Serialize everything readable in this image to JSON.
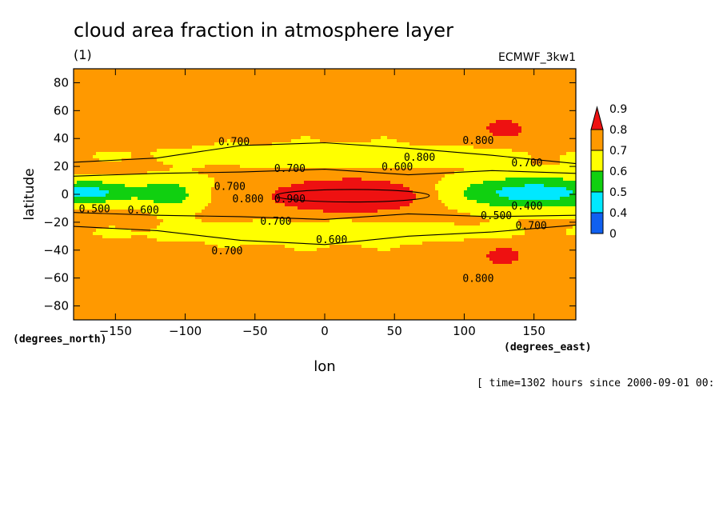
{
  "chart_data": {
    "type": "heatmap",
    "title": "cloud area fraction in atmosphere layer",
    "subtitle": "(1)",
    "dataset": "ECMWF_3kw1",
    "xlabel": "lon",
    "ylabel": "latitude",
    "x_units": "(degrees_east)",
    "y_units": "(degrees_north)",
    "xlim": [
      -180,
      180
    ],
    "ylim": [
      -90,
      90
    ],
    "x_ticks": [
      -150,
      -100,
      -50,
      0,
      50,
      100,
      150
    ],
    "y_ticks": [
      -80,
      -60,
      -40,
      -20,
      0,
      20,
      40,
      60,
      80
    ],
    "time_note": "[ time=1302 hours since 2000-09-01 00:",
    "colorbar": {
      "levels": [
        0,
        0.4,
        0.5,
        0.6,
        0.7,
        0.8,
        0.9
      ],
      "labels": [
        "0",
        "0.4",
        "0.5",
        "0.6",
        "0.7",
        "0.8",
        "0.9"
      ],
      "colors": [
        "#1060f0",
        "#00e8ff",
        "#10d010",
        "#ffff00",
        "#ff9900",
        "#ee1111"
      ]
    },
    "contour_labels": [
      {
        "text": "0.700",
        "lon": -65,
        "lat": 38
      },
      {
        "text": "0.700",
        "lon": -25,
        "lat": 19
      },
      {
        "text": "0.800",
        "lon": 68,
        "lat": 27
      },
      {
        "text": "0.600",
        "lon": 52,
        "lat": 20
      },
      {
        "text": "0.700",
        "lon": 145,
        "lat": 23
      },
      {
        "text": "0.800",
        "lon": 110,
        "lat": 39
      },
      {
        "text": "0.700",
        "lon": -68,
        "lat": 6
      },
      {
        "text": "0.800",
        "lon": -55,
        "lat": -3
      },
      {
        "text": "0.900",
        "lon": -25,
        "lat": -3
      },
      {
        "text": "0.500",
        "lon": -165,
        "lat": -10
      },
      {
        "text": "0.600",
        "lon": -130,
        "lat": -11
      },
      {
        "text": "0.400",
        "lon": 145,
        "lat": -8
      },
      {
        "text": "0.500",
        "lon": 123,
        "lat": -15
      },
      {
        "text": "0.700",
        "lon": 148,
        "lat": -22
      },
      {
        "text": "0.700",
        "lon": -35,
        "lat": -19
      },
      {
        "text": "0.600",
        "lon": 5,
        "lat": -32
      },
      {
        "text": "0.700",
        "lon": -70,
        "lat": -40
      },
      {
        "text": "0.800",
        "lon": 110,
        "lat": -60
      }
    ]
  }
}
